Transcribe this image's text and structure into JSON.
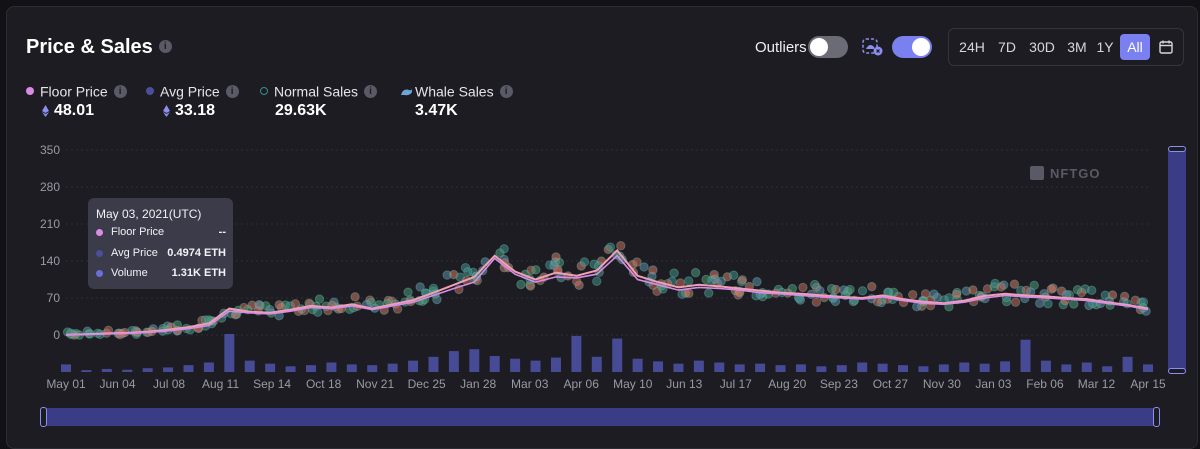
{
  "panel": {
    "title": "Price & Sales",
    "info_icon": "info-icon",
    "outliers_label": "Outliers",
    "outliers_toggle": false,
    "whale_toggle": true,
    "whale_filter_icon": "whale-filter-icon",
    "ranges": [
      "24H",
      "7D",
      "30D",
      "3M",
      "1Y",
      "All"
    ],
    "active_range": "All",
    "calendar_icon": "calendar-icon"
  },
  "legend": [
    {
      "label": "Floor Price",
      "value": "48.01",
      "eth": true,
      "color": "#d98ce6",
      "marker": "dot"
    },
    {
      "label": "Avg Price",
      "value": "33.18",
      "eth": true,
      "color": "#4b4f9a",
      "marker": "dot"
    },
    {
      "label": "Normal Sales",
      "value": "29.63K",
      "eth": false,
      "color": "#3a8c8c",
      "marker": "ring"
    },
    {
      "label": "Whale Sales",
      "value": "3.47K",
      "eth": false,
      "color": "#6aa6d8",
      "marker": "whale-icon"
    }
  ],
  "tooltip": {
    "date": "May 03, 2021(UTC)",
    "rows": [
      {
        "label": "Floor Price",
        "value": "--",
        "color": "#d98ce6"
      },
      {
        "label": "Avg Price",
        "value": "0.4974 ETH",
        "color": "#4b4f9a"
      },
      {
        "label": "Volume",
        "value": "1.31K ETH",
        "color": "#6a6ed8"
      }
    ]
  },
  "watermark": "NFTGO",
  "chart_data": {
    "type": "line",
    "ylim": [
      0,
      350
    ],
    "y_ticks": [
      0,
      70,
      140,
      210,
      280,
      350
    ],
    "x_ticks": [
      "May 01",
      "Jun 04",
      "Jul 08",
      "Aug 11",
      "Sep 14",
      "Oct 18",
      "Nov 21",
      "Dec 25",
      "Jan 28",
      "Mar 03",
      "Apr 06",
      "May 10",
      "Jun 13",
      "Jul 17",
      "Aug 20",
      "Sep 23",
      "Oct 27",
      "Nov 30",
      "Jan 03",
      "Feb 06",
      "Mar 12",
      "Apr 15"
    ],
    "grid": true,
    "series": [
      {
        "name": "Floor Price",
        "color": "#d98ce6",
        "values": [
          0,
          1,
          2,
          3,
          5,
          8,
          12,
          18,
          45,
          42,
          40,
          45,
          52,
          50,
          55,
          48,
          55,
          62,
          75,
          88,
          100,
          145,
          115,
          100,
          110,
          108,
          115,
          150,
          105,
          95,
          85,
          90,
          88,
          85,
          80,
          78,
          75,
          72,
          70,
          68,
          72,
          65,
          60,
          58,
          62,
          70,
          75,
          72,
          70,
          68,
          65,
          60,
          55,
          48
        ]
      },
      {
        "name": "Avg Price",
        "color": "#4b4f9a",
        "values": [
          0.5,
          1.5,
          3,
          4,
          6,
          10,
          15,
          22,
          50,
          44,
          42,
          48,
          55,
          52,
          58,
          50,
          58,
          66,
          80,
          95,
          110,
          150,
          120,
          105,
          118,
          112,
          122,
          160,
          112,
          100,
          90,
          95,
          92,
          88,
          84,
          80,
          78,
          75,
          72,
          70,
          75,
          68,
          63,
          60,
          65,
          74,
          78,
          75,
          73,
          70,
          68,
          62,
          57,
          50
        ]
      },
      {
        "name": "Volume",
        "color": "#4f52a8",
        "values": [
          20,
          5,
          8,
          6,
          10,
          12,
          18,
          25,
          100,
          30,
          22,
          15,
          18,
          25,
          20,
          18,
          22,
          30,
          40,
          55,
          60,
          42,
          35,
          30,
          38,
          95,
          40,
          88,
          35,
          28,
          22,
          30,
          25,
          20,
          22,
          18,
          20,
          15,
          18,
          25,
          22,
          18,
          15,
          20,
          25,
          22,
          28,
          85,
          30,
          20,
          25,
          15,
          40,
          20
        ]
      }
    ]
  }
}
